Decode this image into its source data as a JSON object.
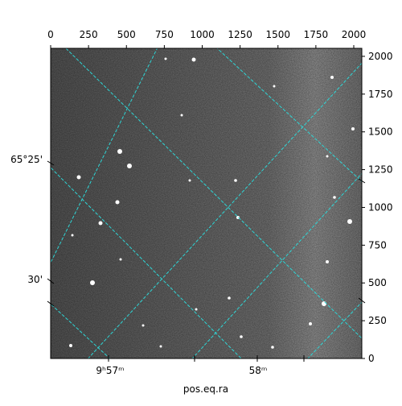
{
  "chart_data": {
    "type": "image",
    "xlabel": "pos.eq.ra",
    "xlim": [
      0,
      2053
    ],
    "ylim": [
      0,
      2053
    ],
    "xticks": [
      0,
      250,
      500,
      750,
      1000,
      1250,
      1500,
      1750,
      2000
    ],
    "yticks": [
      0,
      250,
      500,
      750,
      1000,
      1250,
      1500,
      1750,
      2000
    ],
    "left_labels": [
      "65°25'",
      "30'"
    ],
    "bottom_labels": [
      "9ʰ57ᵐ",
      "58ᵐ"
    ]
  }
}
